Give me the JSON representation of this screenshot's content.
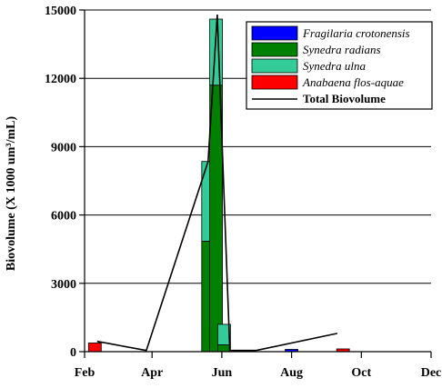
{
  "chart_data": {
    "type": "bar",
    "stacked": true,
    "title": "",
    "xlabel": "",
    "ylabel": "Biovolume (X 1000 um³/mL)",
    "x_ticks": [
      "Feb",
      "Apr",
      "Jun",
      "Aug",
      "Oct",
      "Dec"
    ],
    "y_ticks": [
      0,
      3000,
      6000,
      9000,
      12000,
      15000
    ],
    "ylim": [
      0,
      15000
    ],
    "grid": "horizontal",
    "legend_position": "top-right",
    "dates": [
      "Feb 10",
      "May 20",
      "May 27",
      "Jun 3",
      "Aug 1",
      "Sep 15"
    ],
    "series": [
      {
        "name": "Fragilaria crotonensis",
        "color": "#0000ff",
        "values": [
          0,
          0,
          0,
          0,
          100,
          0
        ]
      },
      {
        "name": "Synedra radians",
        "color": "#008000",
        "values": [
          0,
          4850,
          11700,
          300,
          0,
          0
        ]
      },
      {
        "name": "Synedra ulna",
        "color": "#33cc99",
        "values": [
          0,
          3500,
          2900,
          900,
          0,
          0
        ]
      },
      {
        "name": "Anabaena flos-aquae",
        "color": "#ff0000",
        "values": [
          380,
          0,
          0,
          0,
          0,
          120
        ]
      }
    ],
    "total_line": {
      "name": "Total Biovolume",
      "color": "#000000",
      "points": [
        {
          "x": "Feb 12",
          "y": 450
        },
        {
          "x": "Mar 27",
          "y": 50
        },
        {
          "x": "May 20",
          "y": 8350
        },
        {
          "x": "May 28",
          "y": 14800
        },
        {
          "x": "Jun 8",
          "y": 50
        },
        {
          "x": "Jul 1",
          "y": 50
        },
        {
          "x": "Sep 10",
          "y": 800
        }
      ]
    }
  }
}
